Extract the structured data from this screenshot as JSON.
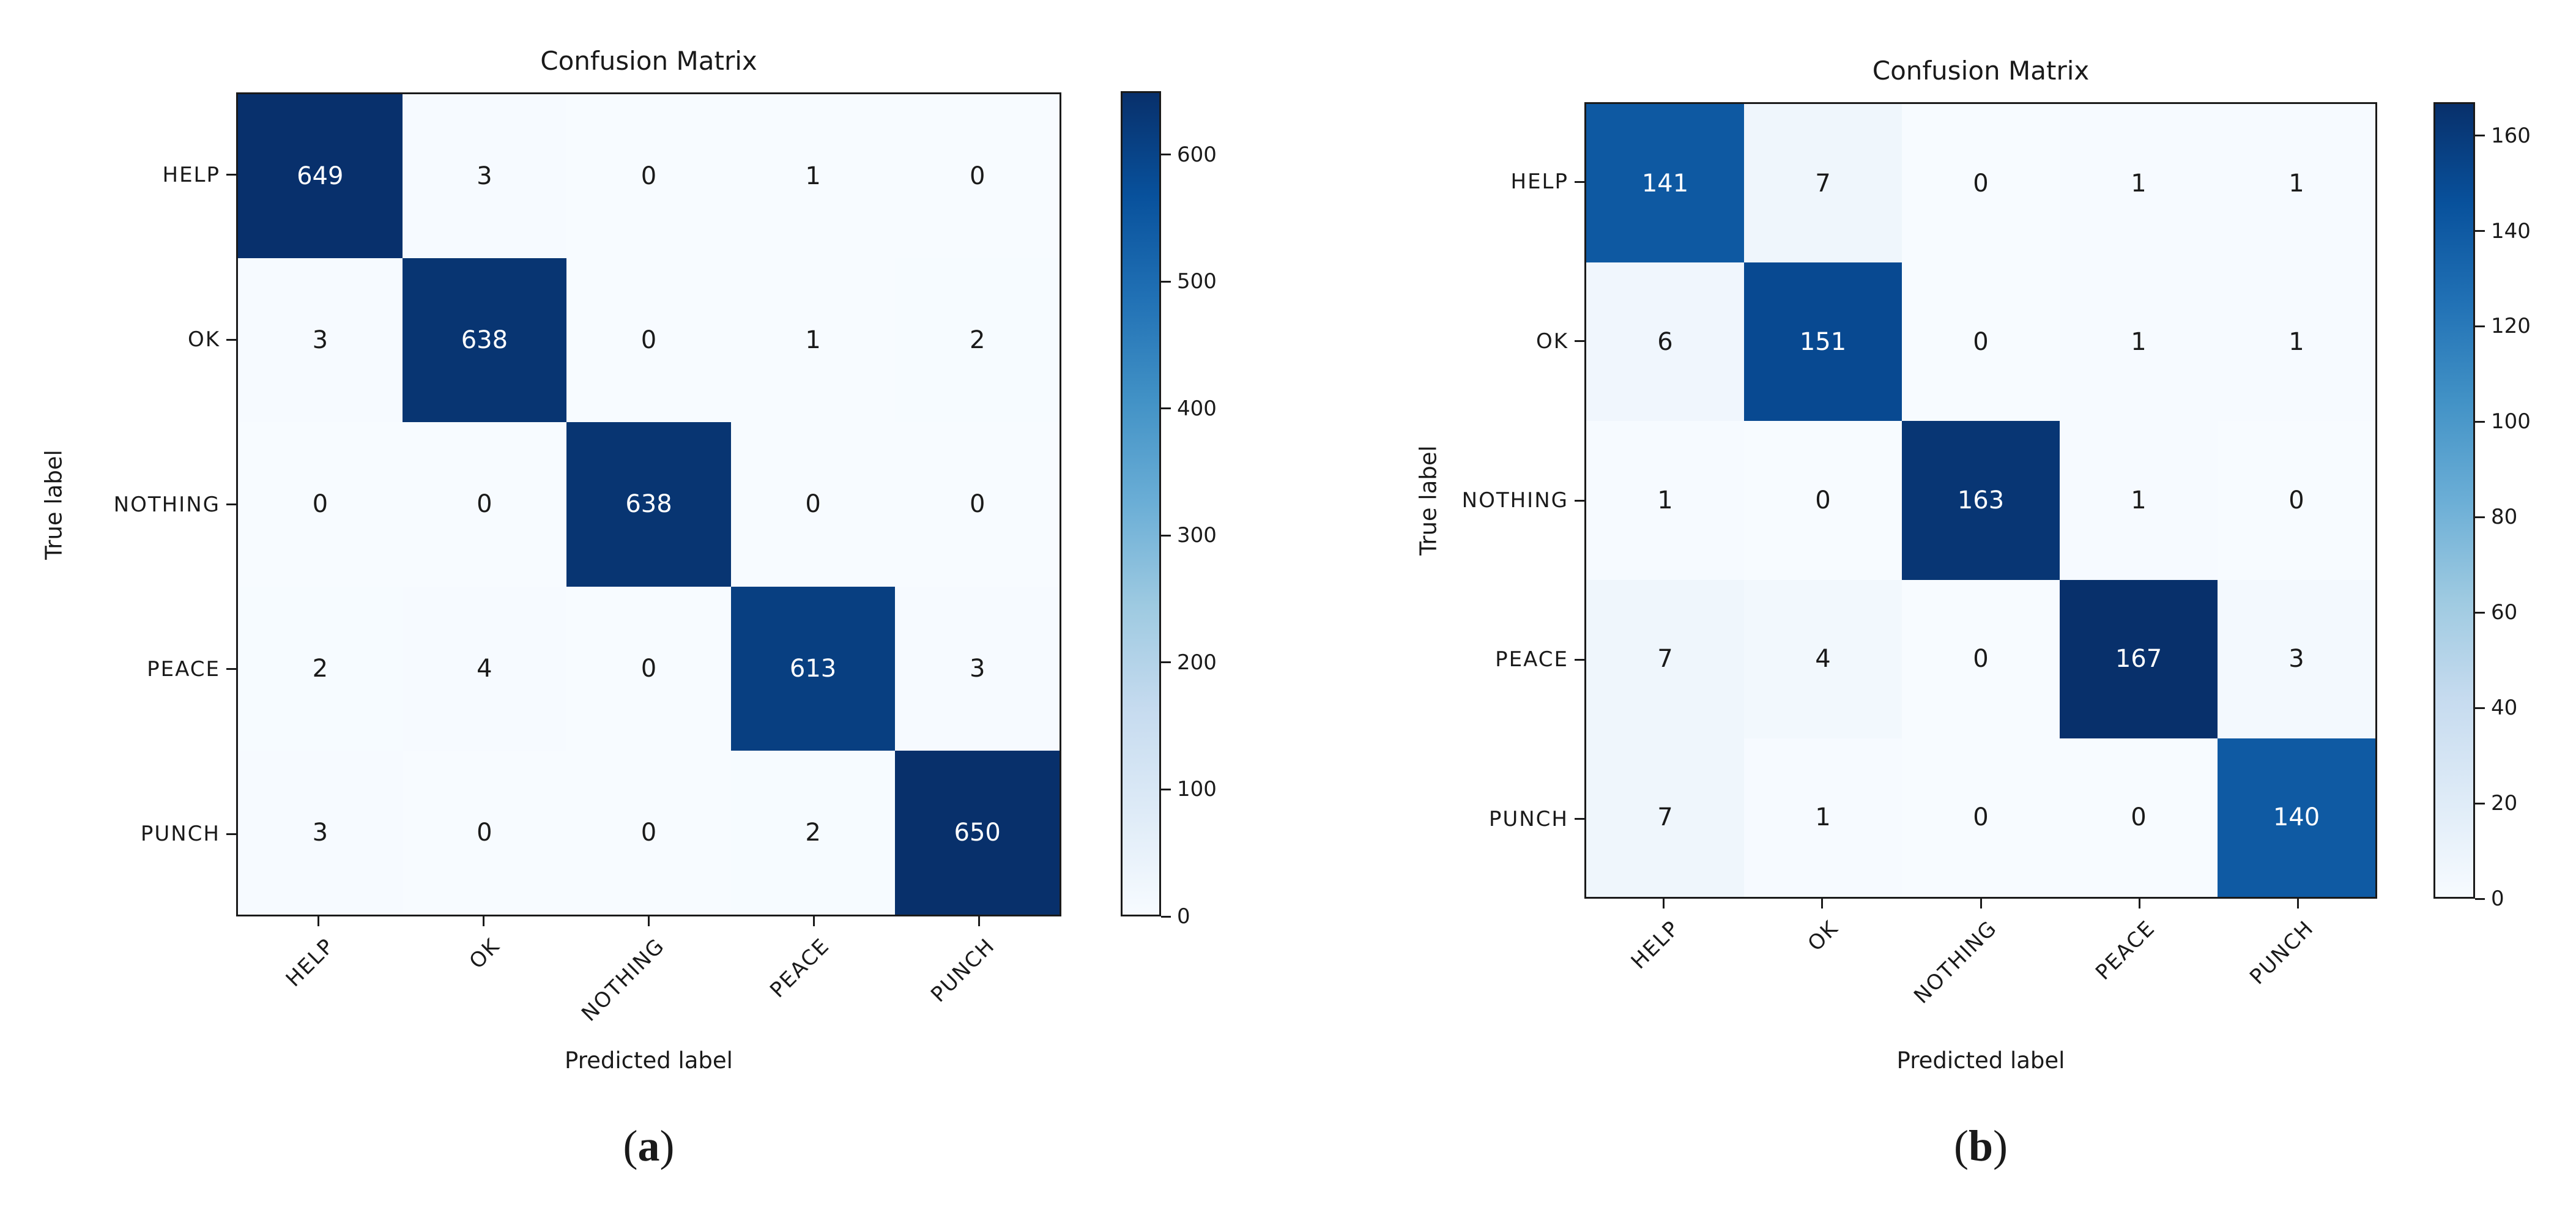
{
  "colors": {
    "colormap_low": "#f7fbff",
    "colormap_high": "#08306b",
    "diagonal_dark_blue": "#0a3570",
    "medium_blue": "#0e59a2",
    "axis_text": "#1a1a1a",
    "cell_text_light": "#ffffff",
    "background": "#ffffff"
  },
  "chart_data": [
    {
      "type": "heatmap",
      "title": "Confusion Matrix",
      "xlabel": "Predicted label",
      "ylabel": "True label",
      "caption_open": "(",
      "caption_letter": "a",
      "caption_close": ")",
      "x_categories": [
        "HELP",
        "OK",
        "NOTHING",
        "PEACE",
        "PUNCH"
      ],
      "y_categories": [
        "HELP",
        "OK",
        "NOTHING",
        "PEACE",
        "PUNCH"
      ],
      "matrix": [
        [
          649,
          3,
          0,
          1,
          0
        ],
        [
          3,
          638,
          0,
          1,
          2
        ],
        [
          0,
          0,
          638,
          0,
          0
        ],
        [
          2,
          4,
          0,
          613,
          3
        ],
        [
          3,
          0,
          0,
          2,
          650
        ]
      ],
      "vmin": 0,
      "vmax": 650,
      "colormap": "Blues",
      "colorbar_ticks": [
        0,
        100,
        200,
        300,
        400,
        500,
        600
      ],
      "legend_position": "right-colorbar",
      "grid": false
    },
    {
      "type": "heatmap",
      "title": "Confusion Matrix",
      "xlabel": "Predicted label",
      "ylabel": "True label",
      "caption_open": "(",
      "caption_letter": "b",
      "caption_close": ")",
      "x_categories": [
        "HELP",
        "OK",
        "NOTHING",
        "PEACE",
        "PUNCH"
      ],
      "y_categories": [
        "HELP",
        "OK",
        "NOTHING",
        "PEACE",
        "PUNCH"
      ],
      "matrix": [
        [
          141,
          7,
          0,
          1,
          1
        ],
        [
          6,
          151,
          0,
          1,
          1
        ],
        [
          1,
          0,
          163,
          1,
          0
        ],
        [
          7,
          4,
          0,
          167,
          3
        ],
        [
          7,
          1,
          0,
          0,
          140
        ]
      ],
      "vmin": 0,
      "vmax": 167,
      "colormap": "Blues",
      "colorbar_ticks": [
        0,
        20,
        40,
        60,
        80,
        100,
        120,
        140,
        160
      ],
      "legend_position": "right-colorbar",
      "grid": false
    }
  ]
}
